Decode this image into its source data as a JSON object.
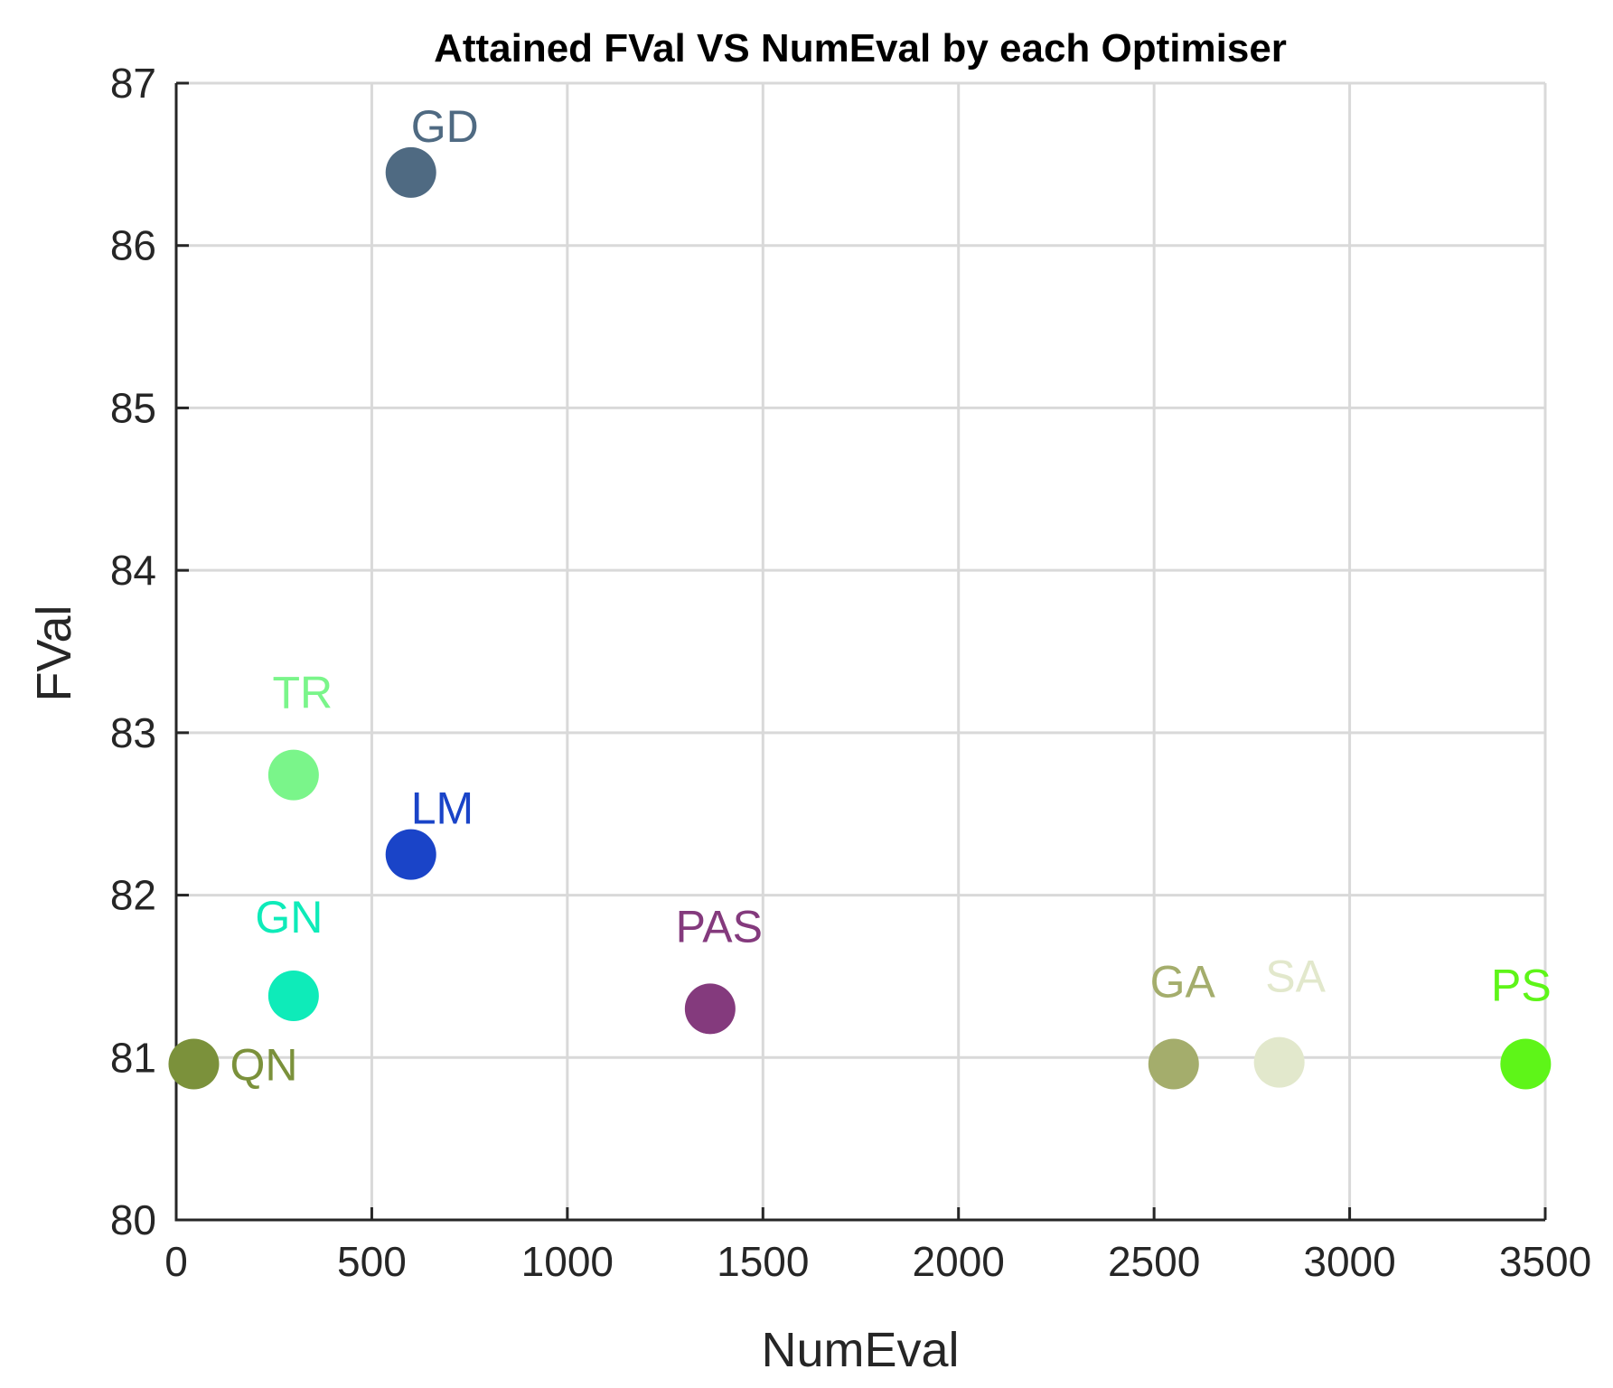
{
  "chart_data": {
    "type": "scatter",
    "title": "Attained FVal VS NumEval by each Optimiser",
    "xlabel": "NumEval",
    "ylabel": "FVal",
    "xlim": [
      0,
      3500
    ],
    "ylim": [
      80,
      87
    ],
    "xticks": [
      0,
      500,
      1000,
      1500,
      2000,
      2500,
      3000,
      3500
    ],
    "yticks": [
      80,
      81,
      82,
      83,
      84,
      85,
      86,
      87
    ],
    "grid": true,
    "points": [
      {
        "label": "GD",
        "x": 600,
        "y": 86.45,
        "color": "#4f6a82",
        "label_pos": "upper-right"
      },
      {
        "label": "TR",
        "x": 300,
        "y": 82.74,
        "color": "#7af58a",
        "label_pos": "above"
      },
      {
        "label": "LM",
        "x": 600,
        "y": 82.25,
        "color": "#1a44c8",
        "label_pos": "upper-right"
      },
      {
        "label": "GN",
        "x": 300,
        "y": 81.38,
        "color": "#0eebb9",
        "label_pos": "above-left"
      },
      {
        "label": "PAS",
        "x": 1365,
        "y": 81.3,
        "color": "#843a7d",
        "label_pos": "above"
      },
      {
        "label": "QN",
        "x": 45,
        "y": 80.96,
        "color": "#7b913b",
        "label_pos": "right"
      },
      {
        "label": "GA",
        "x": 2550,
        "y": 80.96,
        "color": "#a4ad6c",
        "label_pos": "above"
      },
      {
        "label": "SA",
        "x": 2820,
        "y": 80.97,
        "color": "#e2e8cc",
        "label_pos": "above-right"
      },
      {
        "label": "PS",
        "x": 3450,
        "y": 80.96,
        "color": "#5ef518",
        "label_pos": "above-left"
      }
    ]
  }
}
